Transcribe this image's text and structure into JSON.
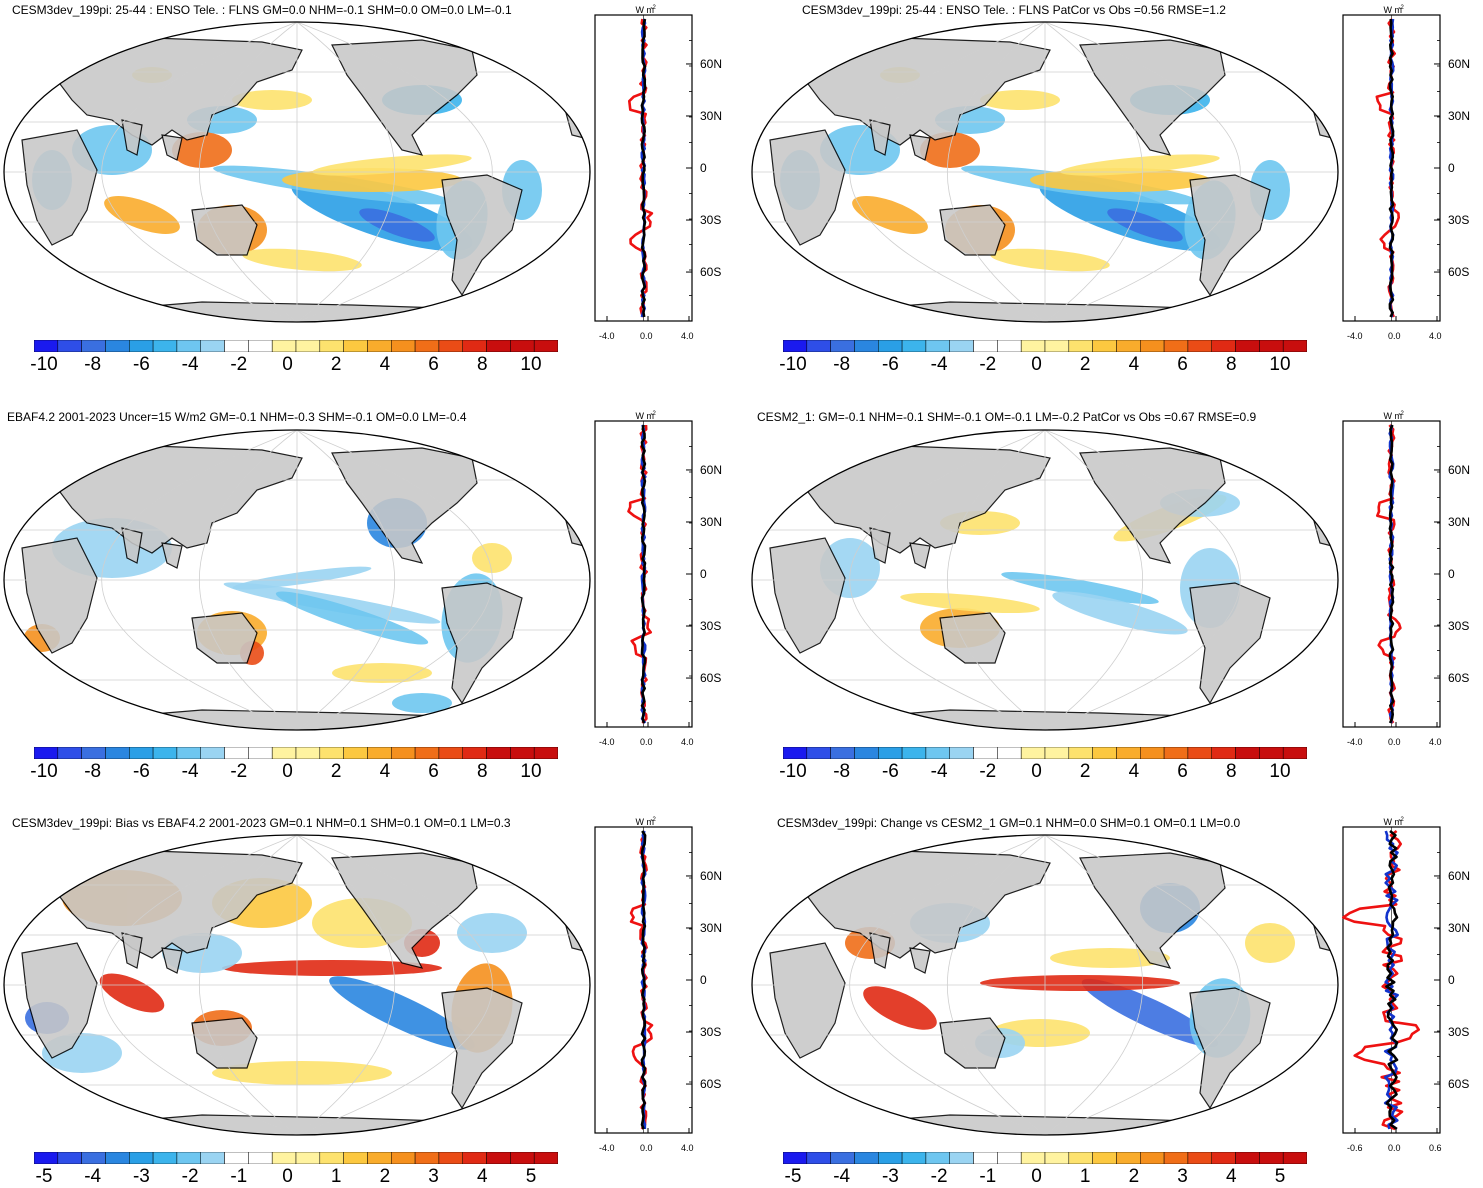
{
  "colors": {
    "land": "#c8c8c8",
    "ocean": "#ffffff",
    "grid": "#cfcfcf",
    "line_red": "#ee1111",
    "line_blue": "#1133cc",
    "line_black": "#000000",
    "palette": [
      "#1a1aef",
      "#2e4ee8",
      "#3a6fe0",
      "#2a86e0",
      "#2a9fe6",
      "#3cb4ec",
      "#6ec6f0",
      "#9ad4f2",
      "#ffffff",
      "#ffffff",
      "#fff3a0",
      "#fde26e",
      "#fcc840",
      "#f9ac2c",
      "#f5901e",
      "#f06e18",
      "#ea4c16",
      "#e02a14",
      "#c80e0e"
    ]
  },
  "zonal_common": {
    "units_label": "W m",
    "units_exp": "-2",
    "lat_labels": [
      "60N",
      "30N",
      "0",
      "30S",
      "60S"
    ]
  },
  "panels": [
    {
      "id": "p1",
      "title": "CESM3dev_199pi: 25-44 : ENSO Tele. : FLNS GM=0.0 NHM=-0.1 SHM=0.0 OM=0.0 LM=-0.1",
      "cbar_labels": [
        "-10",
        "-8",
        "-6",
        "-4",
        "-2",
        "0",
        "2",
        "4",
        "6",
        "8",
        "10"
      ],
      "zonal_xlabels": [
        "-4.0",
        "0.0",
        "4.0"
      ],
      "variant": "model"
    },
    {
      "id": "p2",
      "title": "CESM3dev_199pi: 25-44 : ENSO Tele. : FLNS PatCor vs Obs =0.56 RMSE=1.2",
      "cbar_labels": [
        "-10",
        "-8",
        "-6",
        "-4",
        "-2",
        "0",
        "2",
        "4",
        "6",
        "8",
        "10"
      ],
      "zonal_xlabels": [
        "-4.0",
        "0.0",
        "4.0"
      ],
      "variant": "model"
    },
    {
      "id": "p3",
      "title": "EBAF4.2 2001-2023 Uncer=15 W/m2 GM=-0.1 NHM=-0.3 SHM=-0.1 OM=0.0 LM=-0.4",
      "cbar_labels": [
        "-10",
        "-8",
        "-6",
        "-4",
        "-2",
        "0",
        "2",
        "4",
        "6",
        "8",
        "10"
      ],
      "zonal_xlabels": [
        "-4.0",
        "0.0",
        "4.0"
      ],
      "variant": "obs"
    },
    {
      "id": "p4",
      "title": "CESM2_1: GM=-0.1 NHM=-0.1 SHM=-0.1 OM=-0.1 LM=-0.2 PatCor vs Obs =0.67 RMSE=0.9",
      "cbar_labels": [
        "-10",
        "-8",
        "-6",
        "-4",
        "-2",
        "0",
        "2",
        "4",
        "6",
        "8",
        "10"
      ],
      "zonal_xlabels": [
        "-4.0",
        "0.0",
        "4.0"
      ],
      "variant": "cesm2"
    },
    {
      "id": "p5",
      "title": "CESM3dev_199pi: Bias vs EBAF4.2 2001-2023 GM=0.1 NHM=0.1 SHM=0.1 OM=0.1 LM=0.3",
      "cbar_labels": [
        "-5",
        "-4",
        "-3",
        "-2",
        "-1",
        "0",
        "1",
        "2",
        "3",
        "4",
        "5"
      ],
      "zonal_xlabels": [
        "-4.0",
        "0.0",
        "4.0"
      ],
      "variant": "bias"
    },
    {
      "id": "p6",
      "title": "CESM3dev_199pi: Change vs CESM2_1 GM=0.1 NHM=0.0 SHM=0.1 OM=0.1 LM=0.0",
      "cbar_labels": [
        "-5",
        "-4",
        "-3",
        "-2",
        "-1",
        "0",
        "1",
        "2",
        "3",
        "4",
        "5"
      ],
      "zonal_xlabels": [
        "-0.6",
        "0.0",
        "0.6"
      ],
      "variant": "change"
    }
  ]
}
